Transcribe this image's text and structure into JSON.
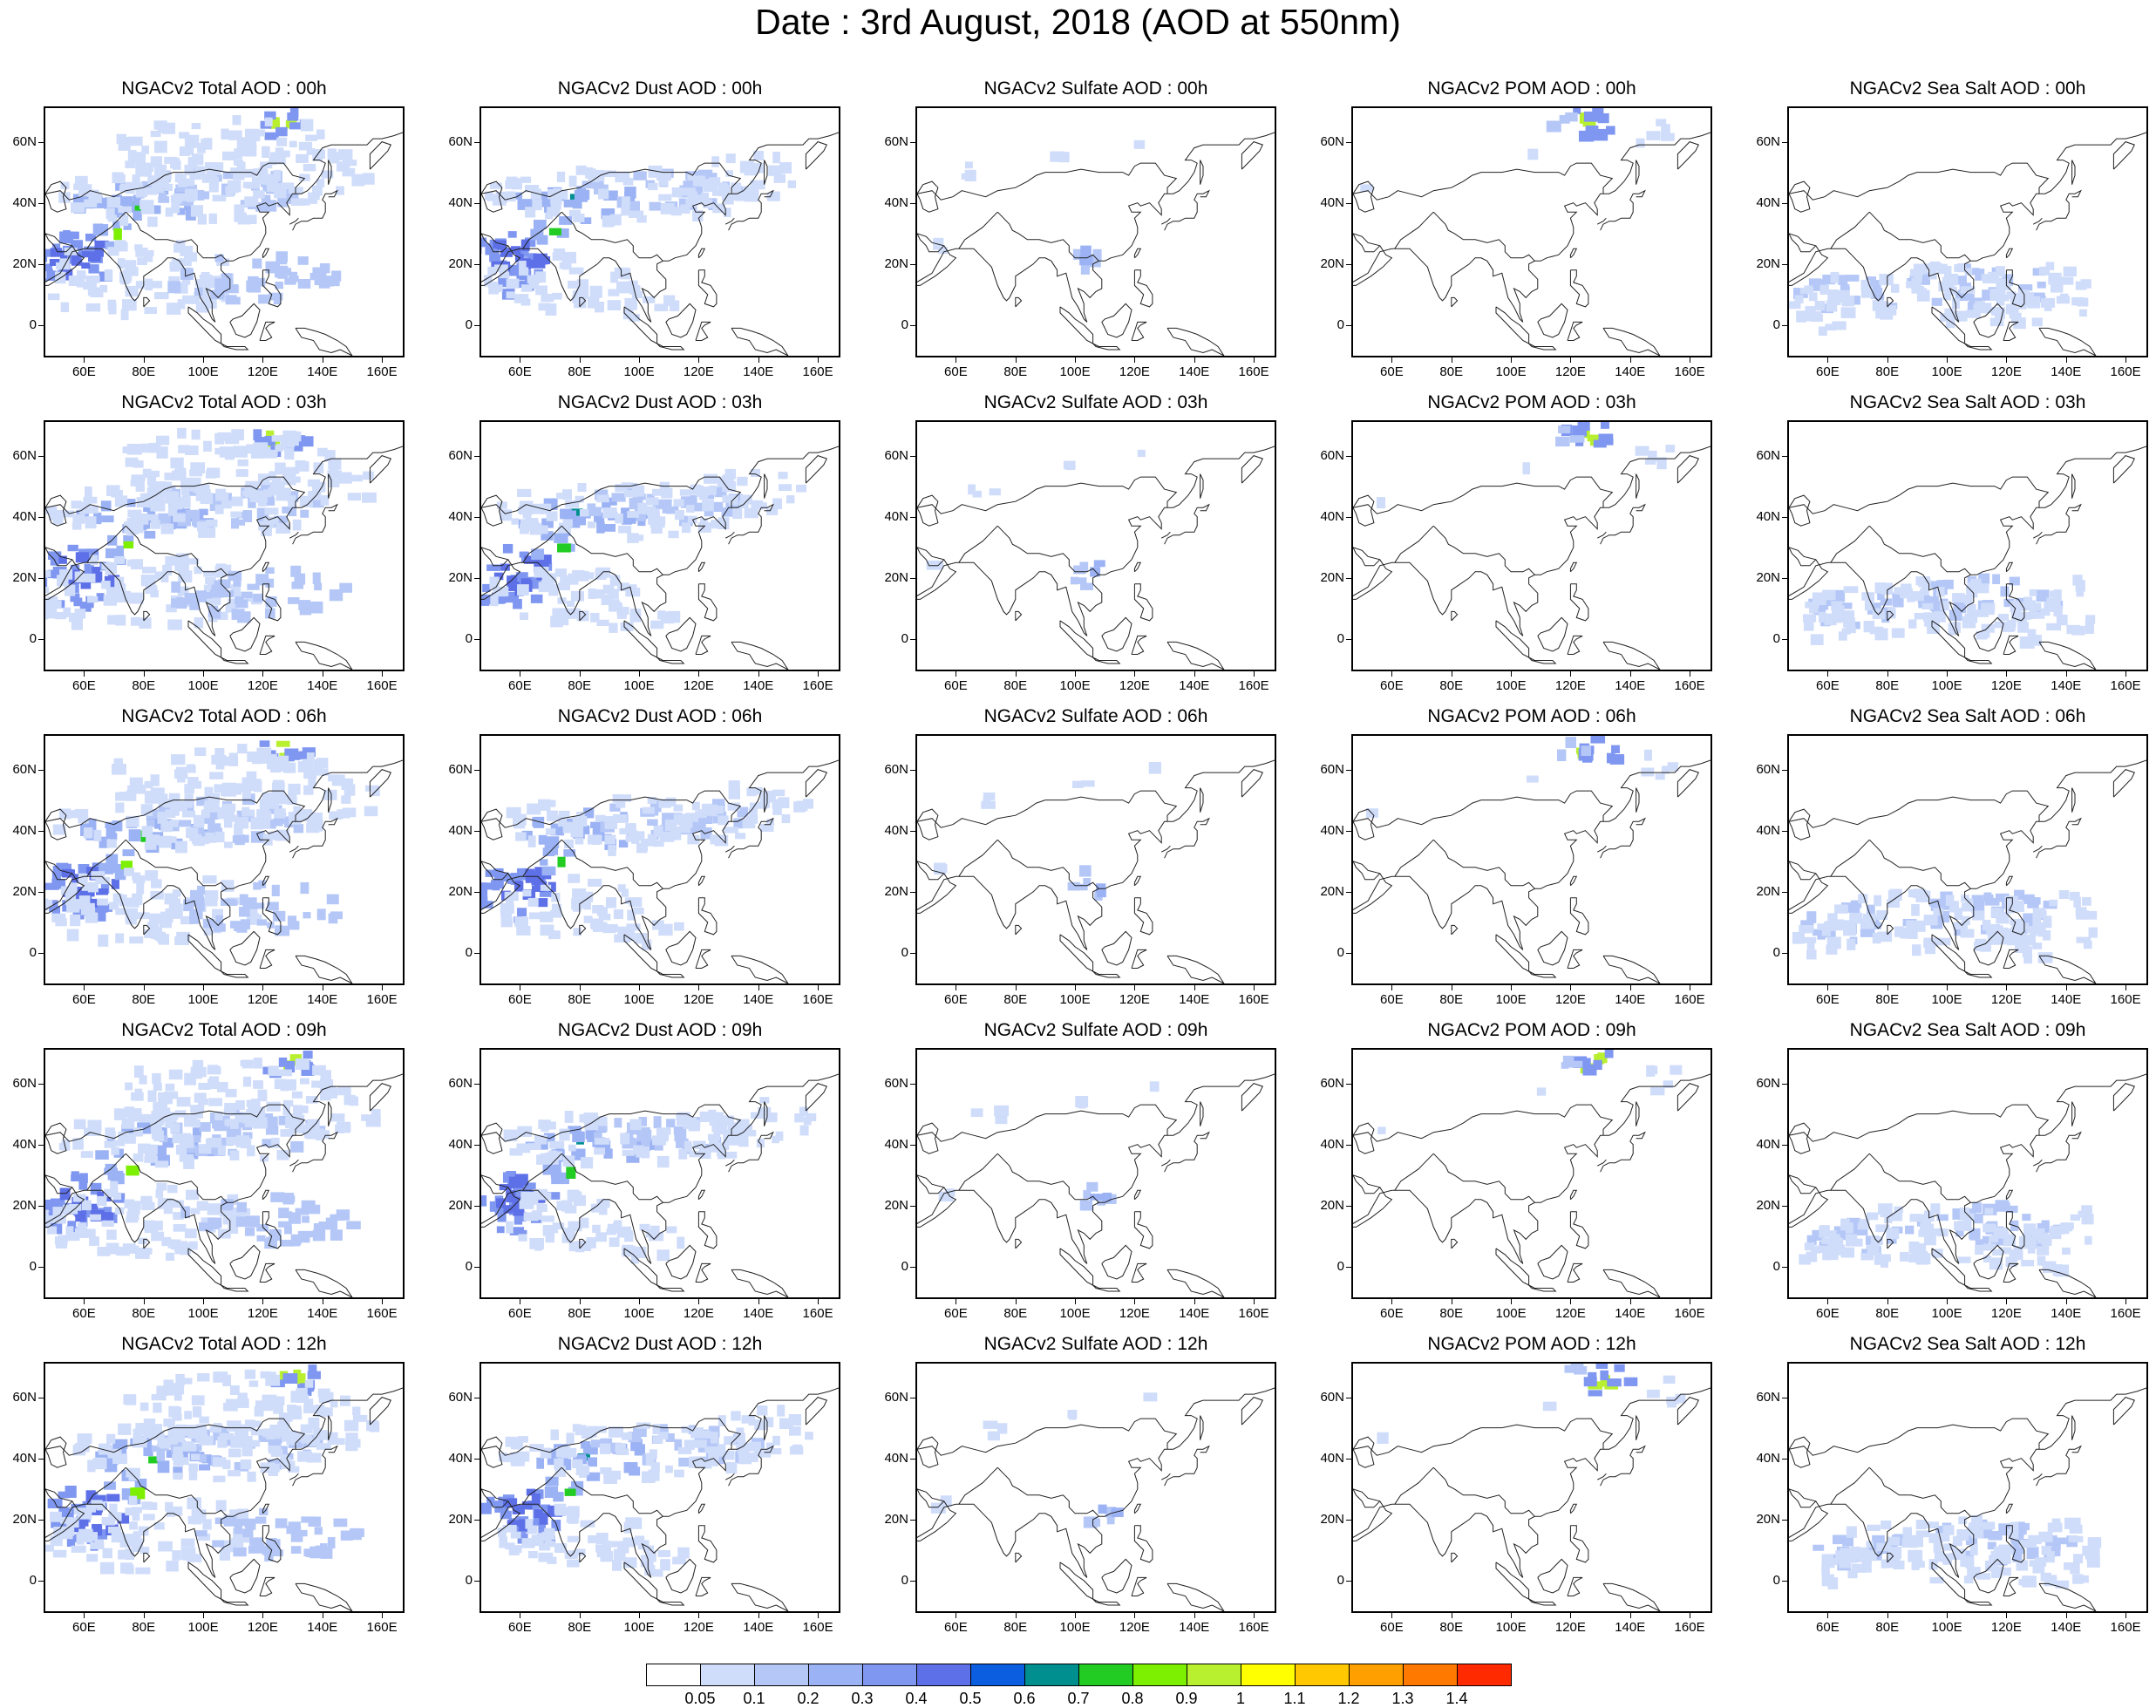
{
  "title": "Date : 3rd August, 2018 (AOD at 550nm)",
  "latitude_labels": [
    "60N",
    "40N",
    "20N",
    "0"
  ],
  "longitude_labels": [
    "60E",
    "80E",
    "100E",
    "120E",
    "140E",
    "160E"
  ],
  "panels": [
    [
      "NGACv2 Total AOD : 00h",
      "NGACv2 Dust AOD : 00h",
      "NGACv2 Sulfate AOD : 00h",
      "NGACv2 POM AOD : 00h",
      "NGACv2 Sea Salt AOD : 00h"
    ],
    [
      "NGACv2 Total AOD : 03h",
      "NGACv2 Dust AOD : 03h",
      "NGACv2 Sulfate AOD : 03h",
      "NGACv2 POM AOD : 03h",
      "NGACv2 Sea Salt AOD : 03h"
    ],
    [
      "NGACv2 Total AOD : 06h",
      "NGACv2 Dust AOD : 06h",
      "NGACv2 Sulfate AOD : 06h",
      "NGACv2 POM AOD : 06h",
      "NGACv2 Sea Salt AOD : 06h"
    ],
    [
      "NGACv2 Total AOD : 09h",
      "NGACv2 Dust AOD : 09h",
      "NGACv2 Sulfate AOD : 09h",
      "NGACv2 POM AOD : 09h",
      "NGACv2 Sea Salt  AOD : 09h"
    ],
    [
      "NGACv2 Total AOD  : 12h",
      "NGACv2 Dust AOD : 12h",
      "NGACv2 Sulfate AOD : 12h",
      "NGACv2 POM  AOD : 12h",
      "NGACv2 Sea Salt  AOD : 12h"
    ]
  ],
  "colorbar": {
    "labels": [
      "0.05",
      "0.1",
      "0.2",
      "0.3",
      "0.4",
      "0.5",
      "0.6",
      "0.7",
      "0.8",
      "0.9",
      "1",
      "1.1",
      "1.2",
      "1.3",
      "1.4"
    ],
    "colors": [
      "#ffffff",
      "#cfdcfa",
      "#b4c7f7",
      "#9bb2f4",
      "#7f97f0",
      "#5e70e8",
      "#0b5ee0",
      "#008f8f",
      "#22cc22",
      "#7cf000",
      "#b8f030",
      "#ffff00",
      "#ffc800",
      "#ffa000",
      "#ff7800",
      "#ff2a00"
    ]
  }
}
